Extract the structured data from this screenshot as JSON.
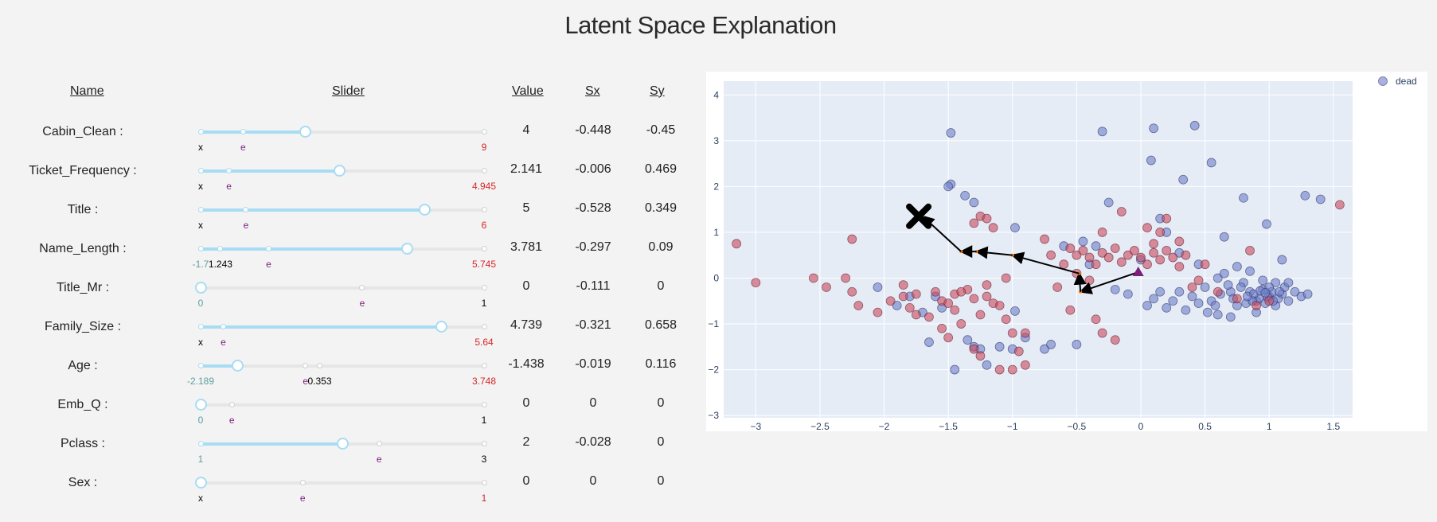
{
  "title": "Latent Space Explanation",
  "table": {
    "headers": {
      "name": "Name",
      "slider": "Slider",
      "value": "Value",
      "sx": "Sx",
      "sy": "Sy"
    },
    "rows": [
      {
        "name": "Cabin_Clean :",
        "value": "4",
        "sx": "-0.448",
        "sy": "-0.45",
        "frac": 0.37,
        "ticks": [
          0,
          0.15,
          1
        ],
        "marks": [
          {
            "t": "x",
            "f": 0,
            "c": "#000"
          },
          {
            "t": "e",
            "f": 0.15,
            "c": "#7b1f7b"
          },
          {
            "t": "9",
            "f": 1,
            "c": "#d62728"
          }
        ]
      },
      {
        "name": "Ticket_Frequency :",
        "value": "2.141",
        "sx": "-0.006",
        "sy": "0.469",
        "frac": 0.49,
        "ticks": [
          0,
          0.1,
          1
        ],
        "marks": [
          {
            "t": "x",
            "f": 0,
            "c": "#000"
          },
          {
            "t": "e",
            "f": 0.1,
            "c": "#7b1f7b"
          },
          {
            "t": "4.945",
            "f": 1,
            "c": "#d62728"
          }
        ]
      },
      {
        "name": "Title :",
        "value": "5",
        "sx": "-0.528",
        "sy": "0.349",
        "frac": 0.79,
        "ticks": [
          0,
          0.16,
          1
        ],
        "marks": [
          {
            "t": "x",
            "f": 0,
            "c": "#000"
          },
          {
            "t": "e",
            "f": 0.16,
            "c": "#7b1f7b"
          },
          {
            "t": "6",
            "f": 1,
            "c": "#d62728"
          }
        ]
      },
      {
        "name": "Name_Length :",
        "value": "3.781",
        "sx": "-0.297",
        "sy": "0.09",
        "frac": 0.73,
        "ticks": [
          0,
          0.07,
          0.24,
          1
        ],
        "marks": [
          {
            "t": "-1.7",
            "f": 0,
            "c": "#5e9ea0"
          },
          {
            "t": "1.243",
            "f": 0.07,
            "c": "#000"
          },
          {
            "t": "e",
            "f": 0.24,
            "c": "#7b1f7b"
          },
          {
            "t": "5.745",
            "f": 1,
            "c": "#d62728"
          }
        ]
      },
      {
        "name": "Title_Mr :",
        "value": "0",
        "sx": "-0.111",
        "sy": "0",
        "frac": 0,
        "ticks": [
          0,
          0.57,
          1
        ],
        "marks": [
          {
            "t": "0",
            "f": 0,
            "c": "#5e9ea0"
          },
          {
            "t": "e",
            "f": 0.57,
            "c": "#7b1f7b"
          },
          {
            "t": "1",
            "f": 1,
            "c": "#000"
          }
        ]
      },
      {
        "name": "Family_Size :",
        "value": "4.739",
        "sx": "-0.321",
        "sy": "0.658",
        "frac": 0.85,
        "ticks": [
          0,
          0.08,
          1
        ],
        "marks": [
          {
            "t": "x",
            "f": 0,
            "c": "#000"
          },
          {
            "t": "e",
            "f": 0.08,
            "c": "#7b1f7b"
          },
          {
            "t": "5.64",
            "f": 1,
            "c": "#d62728"
          }
        ]
      },
      {
        "name": "Age :",
        "value": "-1.438",
        "sx": "-0.019",
        "sy": "0.116",
        "frac": 0.13,
        "ticks": [
          0,
          0.37,
          0.42,
          1
        ],
        "marks": [
          {
            "t": "-2.189",
            "f": 0,
            "c": "#5e9ea0"
          },
          {
            "t": "e",
            "f": 0.37,
            "c": "#7b1f7b"
          },
          {
            "t": "0.353",
            "f": 0.42,
            "c": "#000"
          },
          {
            "t": "3.748",
            "f": 1,
            "c": "#d62728"
          }
        ]
      },
      {
        "name": "Emb_Q :",
        "value": "0",
        "sx": "0",
        "sy": "0",
        "frac": 0,
        "ticks": [
          0,
          0.11,
          1
        ],
        "marks": [
          {
            "t": "0",
            "f": 0,
            "c": "#5e9ea0"
          },
          {
            "t": "e",
            "f": 0.11,
            "c": "#7b1f7b"
          },
          {
            "t": "1",
            "f": 1,
            "c": "#000"
          }
        ]
      },
      {
        "name": "Pclass :",
        "value": "2",
        "sx": "-0.028",
        "sy": "0",
        "frac": 0.5,
        "ticks": [
          0,
          0.63,
          1
        ],
        "marks": [
          {
            "t": "1",
            "f": 0,
            "c": "#5e9ea0"
          },
          {
            "t": "e",
            "f": 0.63,
            "c": "#7b1f7b"
          },
          {
            "t": "3",
            "f": 1,
            "c": "#000"
          }
        ]
      },
      {
        "name": "Sex :",
        "value": "0",
        "sx": "0",
        "sy": "0",
        "frac": 0,
        "ticks": [
          0,
          0.36,
          1
        ],
        "marks": [
          {
            "t": "x",
            "f": 0,
            "c": "#000"
          },
          {
            "t": "e",
            "f": 0.36,
            "c": "#7b1f7b"
          },
          {
            "t": "1",
            "f": 1,
            "c": "#d62728"
          }
        ]
      }
    ]
  },
  "chart_data": {
    "type": "scatter",
    "xlim": [
      -3.25,
      1.65
    ],
    "ylim": [
      -3.05,
      4.3
    ],
    "xticks": [
      -3,
      -2.5,
      -2,
      -1.5,
      -1,
      -0.5,
      0,
      0.5,
      1,
      1.5
    ],
    "yticks": [
      -3,
      -2,
      -1,
      0,
      1,
      2,
      3,
      4
    ],
    "grid": true,
    "legend": {
      "position": "top-right",
      "entries": [
        {
          "name": "dead",
          "color": "#6d7fcc"
        }
      ]
    },
    "colors": {
      "dead": "#6d7fcc",
      "survived": "#c9485b",
      "path": "#000000",
      "origin": "#7a1f7a"
    },
    "points_blue": [
      [
        -1.48,
        3.17
      ],
      [
        0.1,
        3.27
      ],
      [
        0.42,
        3.33
      ],
      [
        -0.3,
        3.2
      ],
      [
        0.08,
        2.57
      ],
      [
        0.55,
        2.52
      ],
      [
        0.33,
        2.15
      ],
      [
        -1.48,
        2.05
      ],
      [
        -1.5,
        2.0
      ],
      [
        -1.37,
        1.8
      ],
      [
        -1.3,
        1.65
      ],
      [
        -0.98,
        1.1
      ],
      [
        -0.25,
        1.65
      ],
      [
        0.15,
        1.3
      ],
      [
        0.2,
        1.0
      ],
      [
        0.8,
        1.75
      ],
      [
        1.28,
        1.8
      ],
      [
        1.4,
        1.72
      ],
      [
        0.98,
        1.18
      ],
      [
        0.65,
        0.9
      ],
      [
        1.1,
        0.4
      ],
      [
        0.45,
        0.3
      ],
      [
        0.3,
        0.55
      ],
      [
        0.0,
        0.4
      ],
      [
        0.55,
        -0.5
      ],
      [
        0.5,
        -0.2
      ],
      [
        0.6,
        0.0
      ],
      [
        0.7,
        -0.3
      ],
      [
        0.75,
        -0.6
      ],
      [
        0.8,
        -0.1
      ],
      [
        0.85,
        -0.3
      ],
      [
        0.9,
        -0.5
      ],
      [
        0.95,
        -0.25
      ],
      [
        1.0,
        -0.4
      ],
      [
        1.05,
        -0.1
      ],
      [
        1.1,
        -0.35
      ],
      [
        1.15,
        -0.5
      ],
      [
        1.2,
        -0.3
      ],
      [
        1.25,
        -0.4
      ],
      [
        1.3,
        -0.35
      ],
      [
        0.92,
        -0.45
      ],
      [
        0.97,
        -0.55
      ],
      [
        1.02,
        -0.3
      ],
      [
        1.07,
        -0.45
      ],
      [
        1.12,
        -0.2
      ],
      [
        0.88,
        -0.35
      ],
      [
        0.82,
        -0.55
      ],
      [
        0.78,
        -0.2
      ],
      [
        0.72,
        -0.45
      ],
      [
        0.68,
        -0.15
      ],
      [
        0.62,
        -0.35
      ],
      [
        0.58,
        -0.6
      ],
      [
        0.52,
        -0.75
      ],
      [
        0.45,
        -0.55
      ],
      [
        0.4,
        -0.4
      ],
      [
        0.35,
        -0.7
      ],
      [
        0.3,
        -0.3
      ],
      [
        0.25,
        -0.5
      ],
      [
        0.2,
        -0.65
      ],
      [
        0.15,
        -0.3
      ],
      [
        0.1,
        -0.45
      ],
      [
        0.05,
        -0.6
      ],
      [
        0.7,
        -0.85
      ],
      [
        0.9,
        -0.75
      ],
      [
        0.6,
        -0.8
      ],
      [
        1.0,
        -0.2
      ],
      [
        0.95,
        -0.05
      ],
      [
        0.85,
        0.15
      ],
      [
        0.75,
        0.25
      ],
      [
        0.65,
        0.1
      ],
      [
        1.05,
        -0.6
      ],
      [
        1.15,
        -0.1
      ],
      [
        0.93,
        -0.28
      ],
      [
        0.99,
        -0.42
      ],
      [
        1.03,
        -0.5
      ],
      [
        0.87,
        -0.5
      ],
      [
        0.83,
        -0.4
      ],
      [
        0.97,
        -0.32
      ],
      [
        1.08,
        -0.3
      ],
      [
        -1.7,
        -0.75
      ],
      [
        -1.55,
        -0.65
      ],
      [
        -1.65,
        -1.4
      ],
      [
        -1.8,
        -0.4
      ],
      [
        -2.05,
        -0.2
      ],
      [
        -1.3,
        -1.5
      ],
      [
        -1.25,
        -1.55
      ],
      [
        -1.1,
        -1.5
      ],
      [
        -1.2,
        -1.9
      ],
      [
        -1.0,
        -1.55
      ],
      [
        -0.75,
        -1.55
      ],
      [
        -0.7,
        -1.45
      ],
      [
        -0.5,
        -1.45
      ],
      [
        -0.9,
        -1.3
      ],
      [
        -1.35,
        -1.35
      ],
      [
        -0.45,
        0.8
      ],
      [
        -0.35,
        0.7
      ],
      [
        -0.6,
        0.7
      ],
      [
        -0.4,
        0.3
      ],
      [
        -1.45,
        -2.0
      ],
      [
        -0.2,
        -0.25
      ],
      [
        -0.1,
        -0.35
      ],
      [
        -1.9,
        -0.6
      ],
      [
        -1.6,
        -0.4
      ],
      [
        -0.98,
        -0.72
      ]
    ],
    "points_red": [
      [
        -3.15,
        0.75
      ],
      [
        -3.0,
        -0.1
      ],
      [
        -2.55,
        0.0
      ],
      [
        -2.45,
        -0.2
      ],
      [
        -2.3,
        0.0
      ],
      [
        -2.25,
        -0.3
      ],
      [
        -2.2,
        -0.6
      ],
      [
        -2.25,
        0.85
      ],
      [
        -1.75,
        -0.35
      ],
      [
        -1.8,
        -0.65
      ],
      [
        -1.75,
        -0.8
      ],
      [
        -1.85,
        -0.4
      ],
      [
        -1.6,
        -0.3
      ],
      [
        -1.55,
        -0.5
      ],
      [
        -1.5,
        -0.55
      ],
      [
        -1.45,
        -0.35
      ],
      [
        -1.35,
        -0.25
      ],
      [
        -1.3,
        -0.45
      ],
      [
        -1.2,
        -0.4
      ],
      [
        -1.1,
        -0.6
      ],
      [
        -1.05,
        -0.9
      ],
      [
        -1.15,
        -0.55
      ],
      [
        -1.25,
        -0.8
      ],
      [
        -1.4,
        -0.3
      ],
      [
        -1.45,
        -0.7
      ],
      [
        -1.65,
        -0.85
      ],
      [
        -1.55,
        -1.1
      ],
      [
        -1.4,
        -1.0
      ],
      [
        -1.0,
        -1.2
      ],
      [
        -0.9,
        -1.2
      ],
      [
        -0.95,
        -1.6
      ],
      [
        -0.9,
        -1.9
      ],
      [
        -1.3,
        -1.55
      ],
      [
        -1.25,
        -1.7
      ],
      [
        -1.1,
        -2.0
      ],
      [
        -1.0,
        -2.0
      ],
      [
        -1.25,
        1.35
      ],
      [
        -1.2,
        1.3
      ],
      [
        -1.15,
        1.1
      ],
      [
        -1.3,
        1.2
      ],
      [
        -0.55,
        0.65
      ],
      [
        -0.5,
        0.5
      ],
      [
        -0.45,
        0.6
      ],
      [
        -0.4,
        0.45
      ],
      [
        -0.35,
        0.3
      ],
      [
        -0.3,
        0.55
      ],
      [
        -0.25,
        0.45
      ],
      [
        -0.2,
        0.65
      ],
      [
        -0.15,
        0.35
      ],
      [
        -0.1,
        0.5
      ],
      [
        -0.05,
        0.6
      ],
      [
        0.0,
        0.45
      ],
      [
        0.05,
        0.3
      ],
      [
        0.1,
        0.55
      ],
      [
        0.15,
        0.4
      ],
      [
        0.2,
        0.6
      ],
      [
        0.25,
        0.45
      ],
      [
        0.3,
        0.25
      ],
      [
        0.35,
        0.5
      ],
      [
        0.05,
        1.1
      ],
      [
        0.15,
        1.0
      ],
      [
        0.1,
        0.75
      ],
      [
        -0.15,
        1.45
      ],
      [
        -0.3,
        1.0
      ],
      [
        0.2,
        1.3
      ],
      [
        0.3,
        0.8
      ],
      [
        0.5,
        0.3
      ],
      [
        0.6,
        -0.3
      ],
      [
        0.75,
        -0.45
      ],
      [
        0.9,
        -0.6
      ],
      [
        1.0,
        -0.5
      ],
      [
        0.85,
        0.6
      ],
      [
        1.55,
        1.6
      ],
      [
        -1.5,
        -1.3
      ],
      [
        -0.3,
        -1.2
      ],
      [
        -0.2,
        -1.35
      ],
      [
        -0.6,
        0.3
      ],
      [
        -0.7,
        0.5
      ],
      [
        -0.75,
        0.85
      ],
      [
        -0.4,
        -0.05
      ],
      [
        -0.5,
        0.1
      ],
      [
        -1.05,
        0.0
      ],
      [
        -1.2,
        -0.15
      ],
      [
        -1.95,
        -0.5
      ],
      [
        -2.05,
        -0.75
      ],
      [
        -1.85,
        -0.15
      ],
      [
        -0.35,
        -0.9
      ],
      [
        -0.55,
        -0.7
      ],
      [
        -0.65,
        -0.2
      ],
      [
        0.4,
        -0.2
      ],
      [
        0.45,
        -0.05
      ]
    ],
    "path": [
      [
        -0.02,
        0.13
      ],
      [
        -0.47,
        -0.3
      ],
      [
        -0.48,
        0.1
      ],
      [
        -1.0,
        0.5
      ],
      [
        -1.28,
        0.58
      ],
      [
        -1.4,
        0.58
      ],
      [
        -1.7,
        1.35
      ]
    ],
    "end_point": [
      -1.73,
      1.35
    ]
  }
}
